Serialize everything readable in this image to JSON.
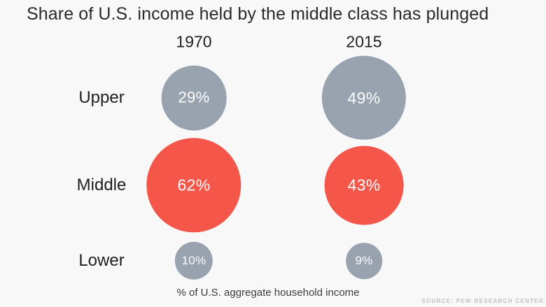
{
  "title": "Share of U.S. income held by the middle class has plunged",
  "footer": "% of U.S. aggregate household income",
  "source": "SOURCE: PEW RESEARCH CENTER",
  "colors": {
    "background": "#f8f8f8",
    "title_text": "#2a2a2a",
    "label_text": "#1f1f1f",
    "bubble_text": "#fcfcfc",
    "footnote_text": "#3d3d3d",
    "source_text": "#bcbfc3",
    "gray_bubble": "#98a3af",
    "red_bubble": "#f5564a"
  },
  "chart_data": {
    "type": "bubble",
    "title": "Share of U.S. income held by the middle class has plunged",
    "columns": [
      "1970",
      "2015"
    ],
    "rows": [
      {
        "label": "Upper",
        "color": "#98a3af",
        "values": [
          29,
          49
        ]
      },
      {
        "label": "Middle",
        "color": "#f5564a",
        "values": [
          62,
          43
        ]
      },
      {
        "label": "Lower",
        "color": "#98a3af",
        "values": [
          10,
          9
        ]
      }
    ],
    "value_suffix": "%",
    "note": "% of U.S. aggregate household income",
    "size_encoding": "bubble area proportional to value",
    "highlight_row": "Middle",
    "legend": "none",
    "grid": false
  }
}
